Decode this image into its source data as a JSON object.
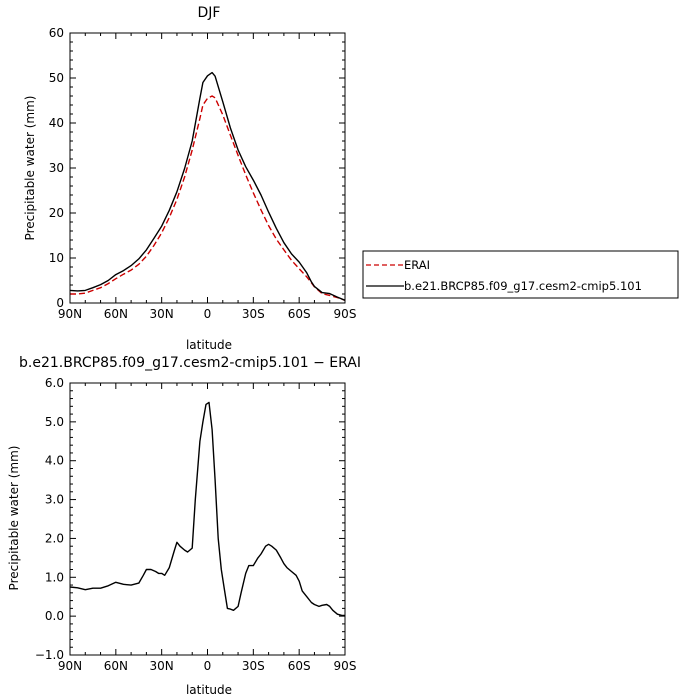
{
  "chart_data": [
    {
      "type": "line",
      "title": "DJF",
      "xlabel": "latitude",
      "ylabel": "Precipitable water (mm)",
      "xlim": [
        -90,
        90
      ],
      "ylim": [
        0,
        60
      ],
      "x_ticks": [
        -90,
        -60,
        -30,
        0,
        30,
        60,
        90
      ],
      "x_tick_labels": [
        "90N",
        "60N",
        "30N",
        "0",
        "30S",
        "60S",
        "90S"
      ],
      "y_ticks": [
        0,
        10,
        20,
        30,
        40,
        50,
        60
      ],
      "y_tick_labels": [
        "0",
        "10",
        "20",
        "30",
        "40",
        "50",
        "60"
      ],
      "legend_position": "right",
      "series": [
        {
          "name": "ERAI",
          "color": "#cc0000",
          "dash": "dashed",
          "x": [
            -90,
            -85,
            -80,
            -75,
            -70,
            -65,
            -60,
            -55,
            -50,
            -45,
            -40,
            -35,
            -30,
            -25,
            -20,
            -15,
            -10,
            -5,
            -3,
            0,
            3,
            5,
            10,
            15,
            20,
            25,
            30,
            35,
            40,
            45,
            50,
            55,
            60,
            65,
            68,
            70,
            75,
            80,
            85,
            90
          ],
          "y": [
            2,
            2,
            2.2,
            2.8,
            3.4,
            4.3,
            5.4,
            6.4,
            7.3,
            8.6,
            10.4,
            12.8,
            15.6,
            19,
            23,
            28,
            34,
            41,
            44,
            45.5,
            46,
            45.6,
            41.8,
            37.3,
            32.8,
            28.5,
            24.5,
            20.7,
            17.2,
            14.2,
            11.8,
            9.5,
            7.6,
            5.8,
            4.5,
            3.6,
            2.1,
            1.7,
            1.2,
            0.6
          ]
        },
        {
          "name": "b.e21.BRCP85.f09_g17.cesm2-cmip5.101",
          "color": "#000000",
          "dash": "solid",
          "x": [
            -90,
            -85,
            -80,
            -75,
            -70,
            -65,
            -60,
            -55,
            -50,
            -45,
            -40,
            -35,
            -30,
            -25,
            -20,
            -15,
            -10,
            -5,
            -3,
            0,
            3,
            5,
            10,
            15,
            20,
            25,
            30,
            35,
            40,
            45,
            50,
            55,
            60,
            65,
            68,
            70,
            75,
            80,
            85,
            90
          ],
          "y": [
            2.8,
            2.7,
            2.8,
            3.4,
            4.1,
            5,
            6.3,
            7.2,
            8.3,
            9.8,
            11.8,
            14.4,
            17.1,
            20.6,
            24.7,
            29.9,
            36,
            45.5,
            49,
            50.5,
            51.2,
            50.4,
            44.7,
            38.9,
            34,
            30.3,
            27.3,
            24,
            20.2,
            16.6,
            13.4,
            10.9,
            9.1,
            6.7,
            4.7,
            3.7,
            2.3,
            2.1,
            1.3,
            0.6
          ]
        }
      ]
    },
    {
      "type": "line",
      "title": "b.e21.BRCP85.f09_g17.cesm2-cmip5.101 − ERAI",
      "xlabel": "latitude",
      "ylabel": "Precipitable water (mm)",
      "xlim": [
        -90,
        90
      ],
      "ylim": [
        -1,
        6
      ],
      "x_ticks": [
        -90,
        -60,
        -30,
        0,
        30,
        60,
        90
      ],
      "x_tick_labels": [
        "90N",
        "60N",
        "30N",
        "0",
        "30S",
        "60S",
        "90S"
      ],
      "y_ticks": [
        -1,
        0,
        1,
        2,
        3,
        4,
        5,
        6
      ],
      "y_tick_labels": [
        "−1.0",
        "0.0",
        "1.0",
        "2.0",
        "3.0",
        "4.0",
        "5.0",
        "6.0"
      ],
      "series": [
        {
          "color": "#000000",
          "dash": "solid",
          "x": [
            -90,
            -85,
            -80,
            -75,
            -70,
            -65,
            -60,
            -55,
            -50,
            -45,
            -42,
            -40,
            -37,
            -34,
            -32,
            -30,
            -28,
            -25,
            -22,
            -20,
            -18,
            -15,
            -13,
            -10,
            -8,
            -5,
            -3,
            -1,
            1,
            3,
            5,
            7,
            9,
            11,
            13,
            15,
            17,
            20,
            22,
            25,
            27,
            30,
            33,
            35,
            38,
            40,
            42,
            45,
            48,
            50,
            52,
            55,
            58,
            60,
            62,
            65,
            68,
            70,
            73,
            75,
            78,
            80,
            82,
            85,
            88,
            90
          ],
          "y": [
            0.75,
            0.73,
            0.68,
            0.72,
            0.72,
            0.78,
            0.87,
            0.82,
            0.8,
            0.85,
            1.05,
            1.2,
            1.2,
            1.15,
            1.1,
            1.1,
            1.05,
            1.25,
            1.65,
            1.9,
            1.8,
            1.7,
            1.65,
            1.75,
            3,
            4.5,
            5,
            5.45,
            5.5,
            4.8,
            3.5,
            2,
            1.2,
            0.7,
            0.2,
            0.18,
            0.15,
            0.25,
            0.6,
            1.1,
            1.3,
            1.3,
            1.5,
            1.6,
            1.8,
            1.85,
            1.8,
            1.7,
            1.5,
            1.35,
            1.25,
            1.15,
            1.05,
            0.9,
            0.65,
            0.5,
            0.35,
            0.3,
            0.25,
            0.28,
            0.3,
            0.25,
            0.15,
            0.05,
            0.02,
            0.02
          ]
        }
      ]
    }
  ]
}
